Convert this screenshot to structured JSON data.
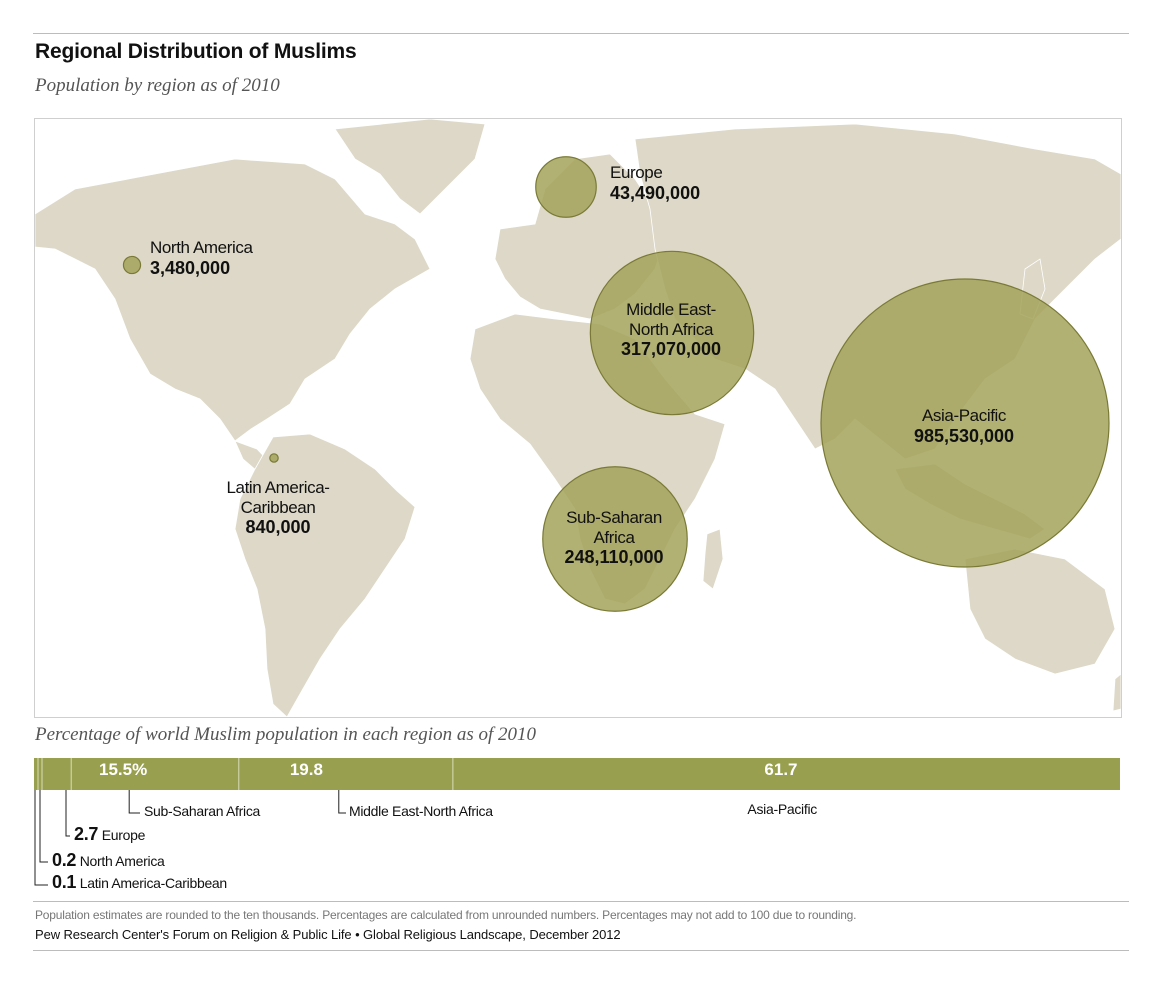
{
  "header": {
    "title": "Regional Distribution of Muslims",
    "subtitle": "Population by region as of 2010"
  },
  "colors": {
    "land": "#ddd8c7",
    "bubble_fill": "#a3a35a",
    "bubble_stroke": "#7a7a36",
    "bar": "#98a04f",
    "bar_divider": "#d9dcb8"
  },
  "chart_data": [
    {
      "type": "bubble-map",
      "title": "Regional Distribution of Muslims",
      "subtitle": "Population by region as of 2010",
      "points": [
        {
          "region": "Europe",
          "value": 43490000,
          "label_value": "43,490,000"
        },
        {
          "region": "North America",
          "value": 3480000,
          "label_value": "3,480,000"
        },
        {
          "region": "Middle East-North Africa",
          "value": 317070000,
          "label_value": "317,070,000",
          "label_lines": [
            "Middle East-",
            "North Africa"
          ]
        },
        {
          "region": "Asia-Pacific",
          "value": 985530000,
          "label_value": "985,530,000"
        },
        {
          "region": "Latin America-Caribbean",
          "value": 840000,
          "label_value": "840,000",
          "label_lines": [
            "Latin America-",
            "Caribbean"
          ]
        },
        {
          "region": "Sub-Saharan Africa",
          "value": 248110000,
          "label_value": "248,110,000",
          "label_lines": [
            "Sub-Saharan",
            "Africa"
          ]
        }
      ]
    },
    {
      "type": "bar",
      "orientation": "horizontal-stacked",
      "title": "Percentage of world Muslim population in each region as of 2010",
      "segments": [
        {
          "name": "Latin America-Caribbean",
          "value": 0.1,
          "label": "0.1"
        },
        {
          "name": "North America",
          "value": 0.2,
          "label": "0.2"
        },
        {
          "name": "Europe",
          "value": 2.7,
          "label": "2.7"
        },
        {
          "name": "Sub-Saharan Africa",
          "value": 15.5,
          "label": "15.5%"
        },
        {
          "name": "Middle East-North Africa",
          "value": 19.8,
          "label": "19.8"
        },
        {
          "name": "Asia-Pacific",
          "value": 61.7,
          "label": "61.7"
        }
      ]
    }
  ],
  "footnote": "Population estimates are rounded to the ten thousands.  Percentages are calculated from unrounded numbers.  Percentages may not add to 100 due to rounding.",
  "source": "Pew Research Center's Forum on Religion & Public Life  •  Global Religious Landscape, December 2012"
}
